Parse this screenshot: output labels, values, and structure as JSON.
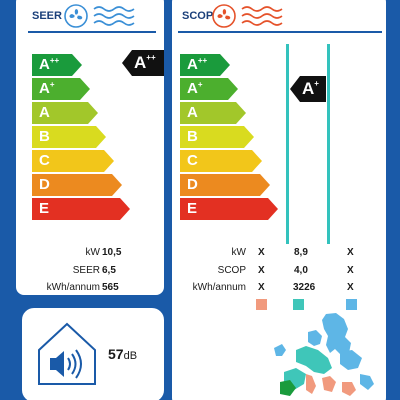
{
  "seer": {
    "title": "SEER",
    "rating": "A",
    "rating_sup": "++",
    "scale": [
      {
        "letter": "A",
        "sup": "++",
        "color": "#1a9b3c"
      },
      {
        "letter": "A",
        "sup": "+",
        "color": "#4caf2e"
      },
      {
        "letter": "A",
        "sup": "",
        "color": "#a2c72a"
      },
      {
        "letter": "B",
        "sup": "",
        "color": "#d9db1f"
      },
      {
        "letter": "C",
        "sup": "",
        "color": "#f2c61a"
      },
      {
        "letter": "D",
        "sup": "",
        "color": "#ec8a1f"
      },
      {
        "letter": "E",
        "sup": "",
        "color": "#e33022"
      }
    ],
    "rows": [
      {
        "label": "kW",
        "value": "10,5"
      },
      {
        "label": "SEER",
        "value": "6,5"
      },
      {
        "label": "kWh/annum",
        "value": "565"
      }
    ]
  },
  "scop": {
    "title": "SCOP",
    "rating": "A",
    "rating_sup": "+",
    "scale": [
      {
        "letter": "A",
        "sup": "++",
        "color": "#1a9b3c"
      },
      {
        "letter": "A",
        "sup": "+",
        "color": "#4caf2e"
      },
      {
        "letter": "A",
        "sup": "",
        "color": "#a2c72a"
      },
      {
        "letter": "B",
        "sup": "",
        "color": "#d9db1f"
      },
      {
        "letter": "C",
        "sup": "",
        "color": "#f2c61a"
      },
      {
        "letter": "D",
        "sup": "",
        "color": "#ec8a1f"
      },
      {
        "letter": "E",
        "sup": "",
        "color": "#e33022"
      }
    ],
    "rows": [
      {
        "label": "kW",
        "cols": [
          "X",
          "8,9",
          "X"
        ]
      },
      {
        "label": "SCOP",
        "cols": [
          "X",
          "4,0",
          "X"
        ]
      },
      {
        "label": "kWh/annum",
        "cols": [
          "X",
          "3226",
          "X"
        ]
      }
    ],
    "zone_colors": [
      "#f19a7e",
      "#3fc6b9",
      "#5eb6e6"
    ]
  },
  "noise": {
    "value": "57",
    "unit": "dB"
  },
  "colors": {
    "frame": "#1a5aa8",
    "fan_blue": "#3a8fd6",
    "fan_red": "#e5522a",
    "column_teal": "#33c2bd"
  },
  "icons": [
    "fan-blue-icon",
    "fan-red-icon",
    "speaker-house-icon",
    "europe-map-icon"
  ]
}
